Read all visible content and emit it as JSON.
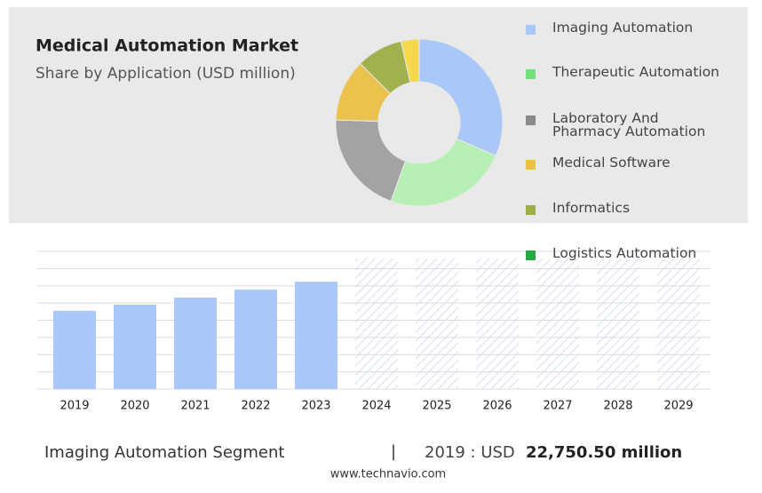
{
  "chart_data": [
    {
      "type": "pie",
      "title": "Medical Automation Market",
      "subtitle": "Share by Application (USD million)",
      "categories": [
        "Imaging Automation",
        "Therapeutic Automation",
        "Laboratory And\nPharmacy Automation",
        "Medical Software",
        "Informatics",
        "Logistics Automation"
      ],
      "values": [
        31.5,
        24,
        20,
        12,
        9,
        3.5
      ],
      "colors": [
        "#a9c8f7",
        "#b7f0b4",
        "#a3a3a3",
        "#ecc24f",
        "#9fb24e",
        "#f6d84c"
      ],
      "legend_colors": [
        "#a9c8f7",
        "#6fe07b",
        "#8a8a8a",
        "#e8c244",
        "#9bb04a",
        "#27a844"
      ]
    },
    {
      "type": "bar",
      "categories": [
        "2019",
        "2020",
        "2021",
        "2022",
        "2023",
        "2024",
        "2025",
        "2026",
        "2027",
        "2028",
        "2029"
      ],
      "values": [
        22750.5,
        24540,
        26580,
        28890,
        31190,
        null,
        null,
        null,
        null,
        null,
        null
      ],
      "color": "#a9c8f7",
      "ylim": [
        0,
        40000
      ],
      "yticks": [
        0,
        5000,
        10000,
        15000,
        20000,
        25000,
        30000,
        35000,
        40000
      ],
      "grid": true
    }
  ],
  "footer": {
    "segment": "Imaging Automation Segment",
    "separator": "|",
    "year_label": "2019 : USD",
    "value_label": "22,750.50 million",
    "source": "www.technavio.com"
  }
}
